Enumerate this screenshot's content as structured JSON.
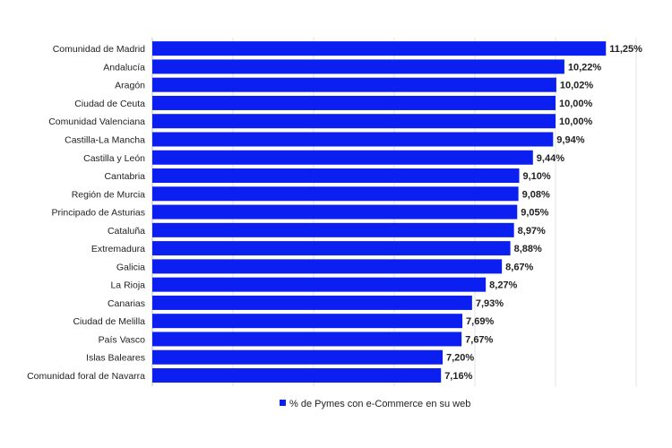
{
  "chart_data": {
    "type": "bar",
    "orientation": "horizontal",
    "categories": [
      "Comunidad de Madrid",
      "Andalucía",
      "Aragón",
      "Ciudad de Ceuta",
      "Comunidad Valenciana",
      "Castilla-La Mancha",
      "Castilla y León",
      "Cantabria",
      "Región de Murcia",
      "Principado de Asturias",
      "Cataluña",
      "Extremadura",
      "Galicia",
      "La Rioja",
      "Canarias",
      "Ciudad de Melilla",
      "País Vasco",
      "Islas Baleares",
      "Comunidad foral de Navarra"
    ],
    "series": [
      {
        "name": "% de Pymes con e-Commerce en su web",
        "color": "#0b1ff0",
        "values": [
          11.25,
          10.22,
          10.02,
          10.0,
          10.0,
          9.94,
          9.44,
          9.1,
          9.08,
          9.05,
          8.97,
          8.88,
          8.67,
          8.27,
          7.93,
          7.69,
          7.67,
          7.2,
          7.16
        ],
        "labels": [
          "11,25%",
          "10,22%",
          "10,02%",
          "10,00%",
          "10,00%",
          "9,94%",
          "9,44%",
          "9,10%",
          "9,08%",
          "9,05%",
          "8,97%",
          "8,88%",
          "8,67%",
          "8,27%",
          "7,93%",
          "7,69%",
          "7,67%",
          "7,20%",
          "7,16%"
        ]
      }
    ],
    "xlim": [
      0,
      12
    ],
    "grid": true,
    "legend": "bottom"
  }
}
